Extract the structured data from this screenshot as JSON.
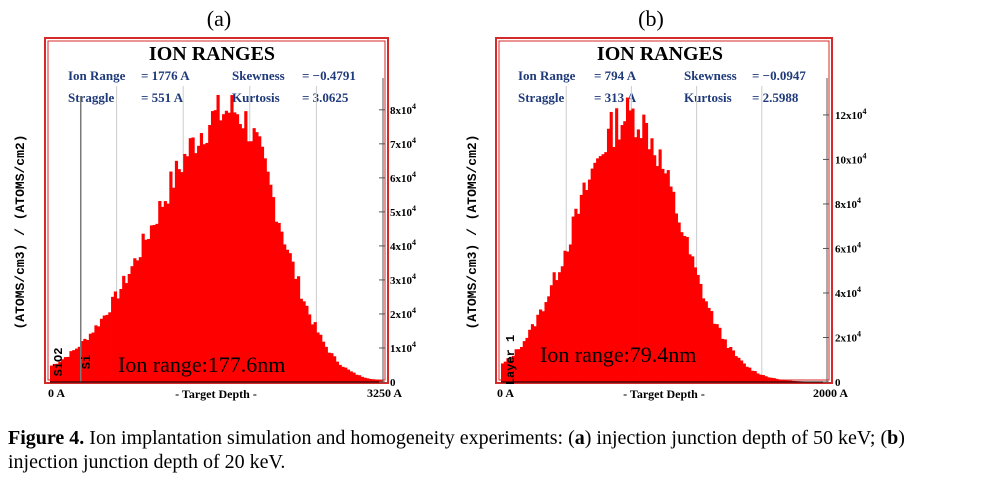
{
  "caption": {
    "label": "Figure 4.",
    "text_1": " Ion implantation simulation and homogeneity experiments: (",
    "a": "a",
    "text_2": ") injection junction depth of 50 keV; (",
    "b": "b",
    "text_3": ") injection junction depth of 20 keV."
  },
  "colors": {
    "histogram_fill": "#ff0000",
    "frame_border": "#d42a2a",
    "grid": "#7a7a7a"
  },
  "chart_data": [
    {
      "type": "bar",
      "panel_label": "(a)",
      "title": "ION RANGES",
      "stats": [
        {
          "name": "Ion Range",
          "value": "= 1776 A"
        },
        {
          "name": "Skewness",
          "value": "= −0.4791"
        },
        {
          "name": "Straggle",
          "value": "= 551  A"
        },
        {
          "name": "Kurtosis",
          "value": "= 3.0625"
        }
      ],
      "xlabel": "- Target Depth -",
      "ylabel": "(ATOMS/cm3) / (ATOMS/cm2)",
      "xlim": [
        0,
        3250
      ],
      "x_tick_labels": [
        "0 A",
        "3250 A"
      ],
      "ylim": [
        0,
        87000
      ],
      "y_ticks": [
        {
          "value": 0,
          "mantissa": "0",
          "exp": ""
        },
        {
          "value": 10000,
          "mantissa": "1x10",
          "exp": "4"
        },
        {
          "value": 20000,
          "mantissa": "2x10",
          "exp": "4"
        },
        {
          "value": 30000,
          "mantissa": "3x10",
          "exp": "4"
        },
        {
          "value": 40000,
          "mantissa": "4x10",
          "exp": "4"
        },
        {
          "value": 50000,
          "mantissa": "5x10",
          "exp": "4"
        },
        {
          "value": 60000,
          "mantissa": "6x10",
          "exp": "4"
        },
        {
          "value": 70000,
          "mantissa": "7x10",
          "exp": "4"
        },
        {
          "value": 80000,
          "mantissa": "8x10",
          "exp": "4"
        }
      ],
      "layer_boundary": 300,
      "layer_labels": [
        "SiO2",
        "Si"
      ],
      "annotation": "Ion range:177.6nm",
      "distribution": {
        "mean": 1776,
        "straggle": 551,
        "peak": 80000,
        "skew_factor": 0.35,
        "bins": 120,
        "noise": 0.08
      }
    },
    {
      "type": "bar",
      "panel_label": "(b)",
      "title": "ION RANGES",
      "stats": [
        {
          "name": "Ion Range",
          "value": "= 794  A"
        },
        {
          "name": "Skewness",
          "value": "= −0.0947"
        },
        {
          "name": "Straggle",
          "value": "= 313  A"
        },
        {
          "name": "Kurtosis",
          "value": "= 2.5988"
        }
      ],
      "xlabel": "- Target Depth -",
      "ylabel": "(ATOMS/cm3) / (ATOMS/cm2)",
      "xlim": [
        0,
        2000
      ],
      "x_tick_labels": [
        "0 A",
        "2000 A"
      ],
      "ylim": [
        0,
        133000
      ],
      "y_ticks": [
        {
          "value": 0,
          "mantissa": "0",
          "exp": ""
        },
        {
          "value": 20000,
          "mantissa": "2x10",
          "exp": "4"
        },
        {
          "value": 40000,
          "mantissa": "4x10",
          "exp": "4"
        },
        {
          "value": 60000,
          "mantissa": "6x10",
          "exp": "4"
        },
        {
          "value": 80000,
          "mantissa": "8x10",
          "exp": "4"
        },
        {
          "value": 100000,
          "mantissa": "10x10",
          "exp": "4"
        },
        {
          "value": 120000,
          "mantissa": "12x10",
          "exp": "4"
        }
      ],
      "layer_boundary": null,
      "layer_labels": [
        "Layer 1"
      ],
      "annotation": "Ion range:79.4nm",
      "distribution": {
        "mean": 794,
        "straggle": 313,
        "peak": 120000,
        "skew_factor": 0.08,
        "bins": 120,
        "noise": 0.08
      }
    }
  ]
}
